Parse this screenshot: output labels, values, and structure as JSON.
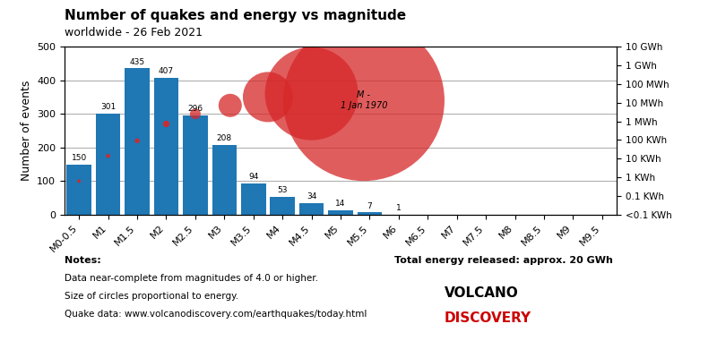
{
  "chart_data": {
    "type": "bar",
    "title": "Number of quakes and energy vs magnitude",
    "subtitle": "worldwide - 26 Feb 2021",
    "categories": [
      "M0-0.5",
      "M1",
      "M1.5",
      "M2",
      "M2.5",
      "M3",
      "M3.5",
      "M4",
      "M4.5",
      "M5",
      "M5.5",
      "M6",
      "M6.5",
      "M7",
      "M7.5",
      "M8",
      "M8.5",
      "M9",
      "M9.5"
    ],
    "values": [
      150,
      301,
      435,
      407,
      296,
      208,
      94,
      53,
      34,
      14,
      7,
      1,
      0,
      0,
      0,
      0,
      0,
      0,
      0
    ],
    "value_labels": [
      "150",
      "301",
      "435",
      "407",
      "296",
      "208",
      "94",
      "53",
      "34",
      "14",
      "7",
      "1",
      null,
      null,
      null,
      null,
      null,
      null,
      null
    ],
    "data_labels": true,
    "ylabel": "Number of events",
    "ylim": [
      0,
      500
    ],
    "yticks": [
      0,
      100,
      200,
      300,
      400,
      500
    ],
    "grid": true,
    "log": "y2",
    "y2lim": [
      0.01,
      10000000
    ],
    "y2ticks": [
      {
        "value": 10000000,
        "label": "10 GWh"
      },
      {
        "value": 1000000,
        "label": "1 GWh"
      },
      {
        "value": 100000,
        "label": "100 MWh"
      },
      {
        "value": 10000,
        "label": "10 MWh"
      },
      {
        "value": 1000,
        "label": "1 MWh"
      },
      {
        "value": 100,
        "label": "100 KWh"
      },
      {
        "value": 10,
        "label": "10 KWh"
      },
      {
        "value": 1,
        "label": "1 KWh"
      },
      {
        "value": 0.1,
        "label": "0.1 KWh"
      },
      {
        "value": 0.01,
        "label": "<0.1 KWh"
      }
    ],
    "dots": {
      "color": "#d62728",
      "x": [
        0,
        1,
        2,
        3
      ],
      "y": [
        100,
        175,
        220,
        270
      ],
      "size": [
        3,
        5,
        8,
        18
      ]
    },
    "bubbles": {
      "color": "#d62728",
      "x": [
        4.0,
        5.2,
        6.5,
        8.0,
        9.8
      ],
      "y": [
        300,
        325,
        350,
        360,
        340
      ],
      "radius": [
        6,
        13,
        28,
        52,
        90
      ]
    },
    "annotations": [
      {
        "text": "M -\n1 Jan 1970",
        "x": 9.8,
        "y": 340
      }
    ],
    "notes_title": "Notes:",
    "notes": [
      "Data near-complete from magnitudes of 4.0 or higher.",
      "Size of circles proportional to energy.",
      "Quake data: www.volcanodiscovery.com/earthquakes/today.html"
    ],
    "total_energy_text": "Total energy released: approx. 20 GWh",
    "logo": [
      {
        "text": "VOLCANO",
        "color": "#000000"
      },
      {
        "text": "DISCOVERY",
        "color": "#cc0000"
      }
    ]
  }
}
